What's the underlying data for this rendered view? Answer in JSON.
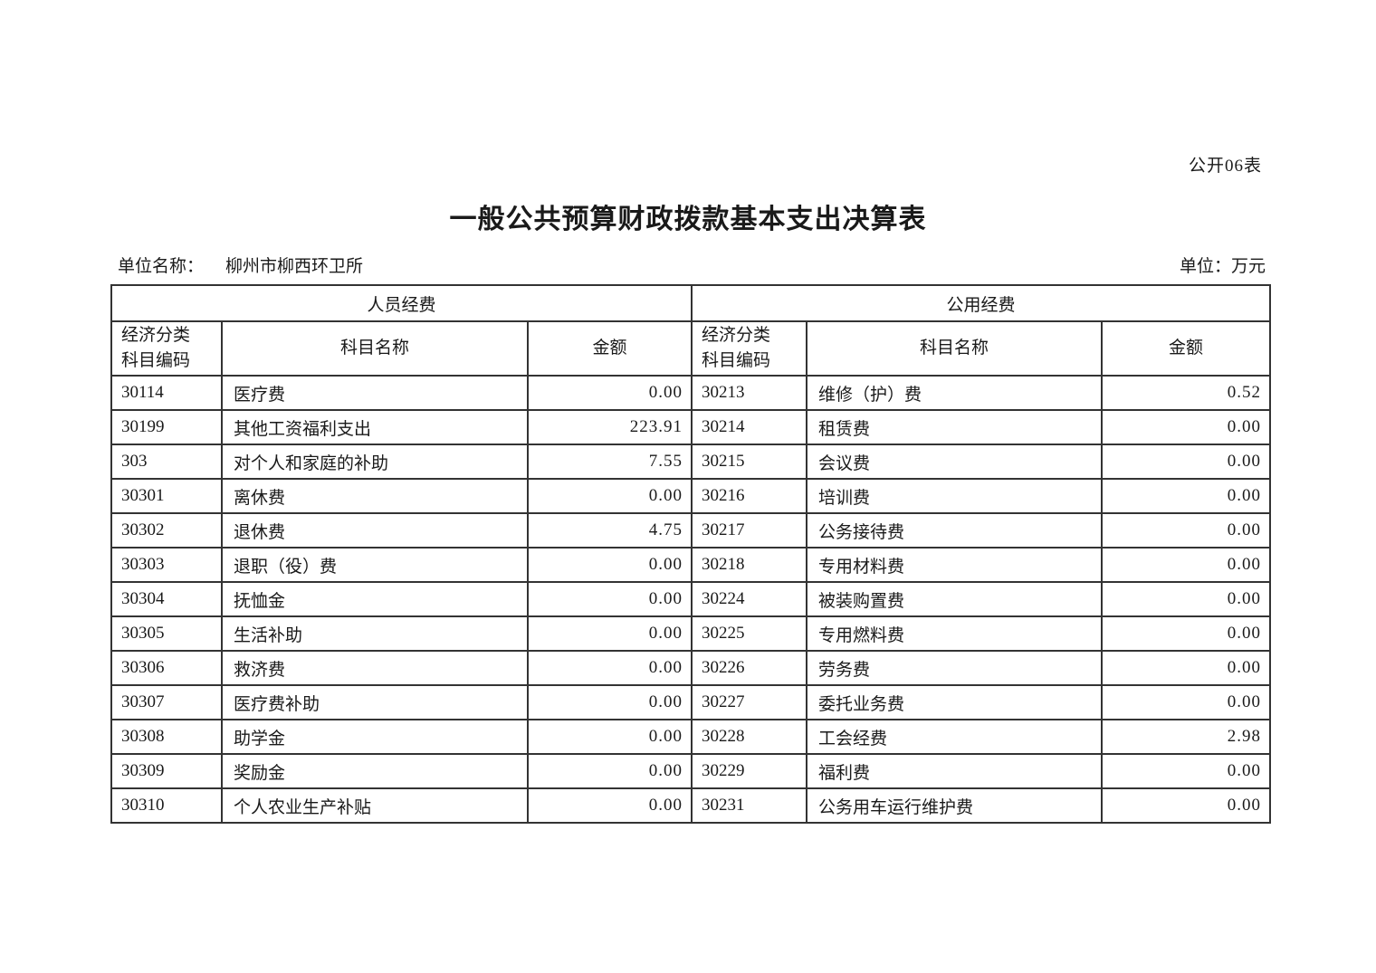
{
  "page": {
    "form_code": "公开06表",
    "title": "一般公共预算财政拨款基本支出决算表",
    "unit_name_label": "单位名称：",
    "unit_name_value": "柳州市柳西环卫所",
    "unit_label": "单位：万元"
  },
  "table": {
    "left_section": {
      "title": "人员经费",
      "code_header": [
        "经济分类",
        "科目编码"
      ],
      "name_header": "科目名称",
      "amount_header": "金额"
    },
    "right_section": {
      "title": "公用经费",
      "code_header": [
        "经济分类",
        "科目编码"
      ],
      "name_header": "科目名称",
      "amount_header": "金额"
    },
    "rows": [
      {
        "left": {
          "code": "30114",
          "name": "医疗费",
          "amount": "0.00"
        },
        "right": {
          "code": "30213",
          "name": "维修（护）费",
          "amount": "0.52"
        }
      },
      {
        "left": {
          "code": "30199",
          "name": "其他工资福利支出",
          "amount": "223.91"
        },
        "right": {
          "code": "30214",
          "name": "租赁费",
          "amount": "0.00"
        }
      },
      {
        "left": {
          "code": "303",
          "name": "对个人和家庭的补助",
          "amount": "7.55"
        },
        "right": {
          "code": "30215",
          "name": "会议费",
          "amount": "0.00"
        }
      },
      {
        "left": {
          "code": "30301",
          "name": "离休费",
          "amount": "0.00"
        },
        "right": {
          "code": "30216",
          "name": "培训费",
          "amount": "0.00"
        }
      },
      {
        "left": {
          "code": "30302",
          "name": "退休费",
          "amount": "4.75"
        },
        "right": {
          "code": "30217",
          "name": "公务接待费",
          "amount": "0.00"
        }
      },
      {
        "left": {
          "code": "30303",
          "name": "退职（役）费",
          "amount": "0.00"
        },
        "right": {
          "code": "30218",
          "name": "专用材料费",
          "amount": "0.00"
        }
      },
      {
        "left": {
          "code": "30304",
          "name": "抚恤金",
          "amount": "0.00"
        },
        "right": {
          "code": "30224",
          "name": "被装购置费",
          "amount": "0.00"
        }
      },
      {
        "left": {
          "code": "30305",
          "name": "生活补助",
          "amount": "0.00"
        },
        "right": {
          "code": "30225",
          "name": "专用燃料费",
          "amount": "0.00"
        }
      },
      {
        "left": {
          "code": "30306",
          "name": "救济费",
          "amount": "0.00"
        },
        "right": {
          "code": "30226",
          "name": "劳务费",
          "amount": "0.00"
        }
      },
      {
        "left": {
          "code": "30307",
          "name": "医疗费补助",
          "amount": "0.00"
        },
        "right": {
          "code": "30227",
          "name": "委托业务费",
          "amount": "0.00"
        }
      },
      {
        "left": {
          "code": "30308",
          "name": "助学金",
          "amount": "0.00"
        },
        "right": {
          "code": "30228",
          "name": "工会经费",
          "amount": "2.98"
        }
      },
      {
        "left": {
          "code": "30309",
          "name": "奖励金",
          "amount": "0.00"
        },
        "right": {
          "code": "30229",
          "name": "福利费",
          "amount": "0.00"
        }
      },
      {
        "left": {
          "code": "30310",
          "name": "个人农业生产补贴",
          "amount": "0.00"
        },
        "right": {
          "code": "30231",
          "name": "公务用车运行维护费",
          "amount": "0.00"
        }
      }
    ]
  },
  "colors": {
    "border": "#333333",
    "text": "#1a1a1a",
    "background": "#ffffff"
  }
}
